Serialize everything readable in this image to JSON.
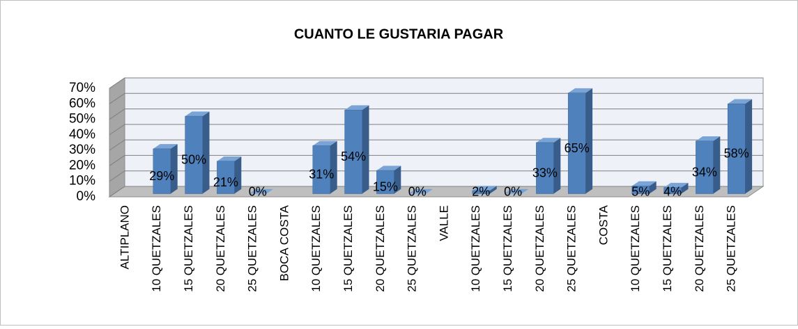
{
  "chart_data": {
    "type": "bar3d",
    "title": "CUANTO LE GUSTARIA PAGAR",
    "categories": [
      "ALTIPLANO",
      "10 QUETZALES",
      "15 QUETZALES",
      "20 QUETZALES",
      "25 QUETZALES",
      "BOCA COSTA",
      "10 QUETZALES",
      "15 QUETZALES",
      "20 QUETZALES",
      "25 QUETZALES",
      "VALLE",
      "10 QUETZALES",
      "15 QUETZALES",
      "20 QUETZALES",
      "25 QUETZALES",
      "COSTA",
      "10 QUETZALES",
      "15 QUETZALES",
      "20 QUETZALES",
      "25 QUETZALES"
    ],
    "values": [
      null,
      29,
      50,
      21,
      0,
      null,
      31,
      54,
      15,
      0,
      null,
      2,
      0,
      33,
      65,
      null,
      5,
      4,
      34,
      58
    ],
    "value_labels": [
      null,
      "29%",
      "50%",
      "21%",
      "0%",
      null,
      "31%",
      "54%",
      "15%",
      "0%",
      null,
      "2%",
      "0%",
      "33%",
      "65%",
      null,
      "5%",
      "4%",
      "34%",
      "58%"
    ],
    "color": "#4f81bd",
    "ylim": [
      0,
      70
    ],
    "yticks": [
      {
        "value": 0,
        "label": "0%"
      },
      {
        "value": 10,
        "label": "10%"
      },
      {
        "value": 20,
        "label": "20%"
      },
      {
        "value": 30,
        "label": "30%"
      },
      {
        "value": 40,
        "label": "40%"
      },
      {
        "value": 50,
        "label": "50%"
      },
      {
        "value": 60,
        "label": "60%"
      },
      {
        "value": 70,
        "label": "70%"
      }
    ],
    "grid": true
  }
}
